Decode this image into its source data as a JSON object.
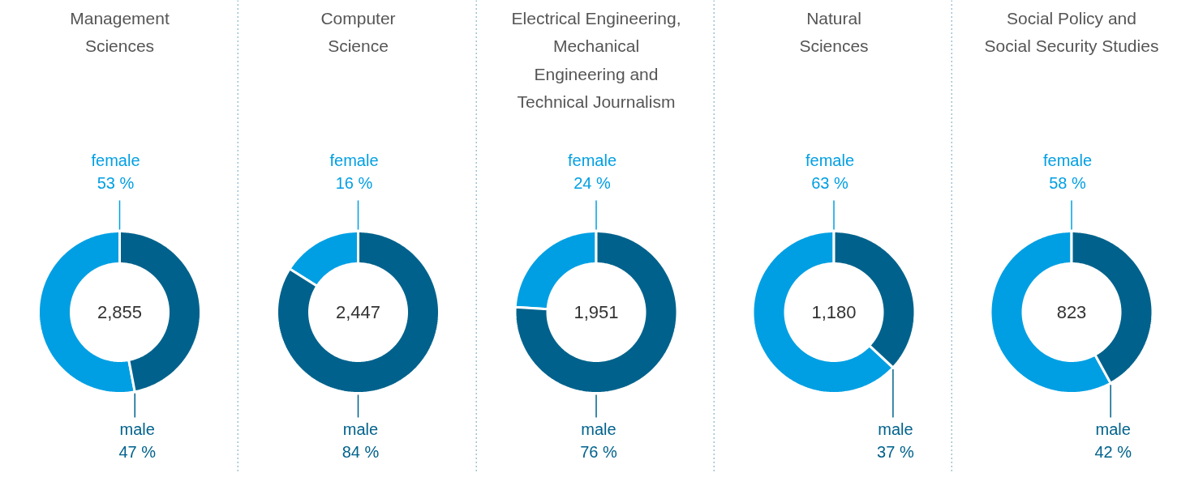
{
  "chart_data": [
    {
      "type": "donut",
      "title": "Management\nSciences",
      "categories": [
        "female",
        "male"
      ],
      "values": [
        53,
        47
      ],
      "colors": [
        "#009fe3",
        "#00628c"
      ],
      "value_labels": [
        "53 %",
        "47 %"
      ],
      "annotations": [
        "2,855"
      ]
    },
    {
      "type": "donut",
      "title": "Computer\nScience",
      "categories": [
        "female",
        "male"
      ],
      "values": [
        16,
        84
      ],
      "colors": [
        "#009fe3",
        "#00628c"
      ],
      "value_labels": [
        "16 %",
        "84 %"
      ],
      "annotations": [
        "2,447"
      ]
    },
    {
      "type": "donut",
      "title": "Electrical Engineering,\nMechanical\nEngineering and\nTechnical Journalism",
      "categories": [
        "female",
        "male"
      ],
      "values": [
        24,
        76
      ],
      "colors": [
        "#009fe3",
        "#00628c"
      ],
      "value_labels": [
        "24 %",
        "76 %"
      ],
      "annotations": [
        "1,951"
      ]
    },
    {
      "type": "donut",
      "title": "Natural\nSciences",
      "categories": [
        "female",
        "male"
      ],
      "values": [
        63,
        37
      ],
      "colors": [
        "#009fe3",
        "#00628c"
      ],
      "value_labels": [
        "63 %",
        "37 %"
      ],
      "annotations": [
        "1,180"
      ]
    },
    {
      "type": "donut",
      "title": "Social Policy and\nSocial Security Studies",
      "categories": [
        "female",
        "male"
      ],
      "values": [
        58,
        42
      ],
      "colors": [
        "#009fe3",
        "#00628c"
      ],
      "value_labels": [
        "58 %",
        "42 %"
      ],
      "annotations": [
        "823"
      ]
    }
  ]
}
